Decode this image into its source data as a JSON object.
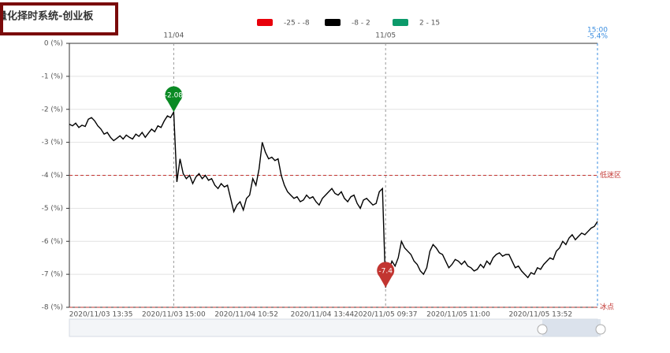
{
  "chart_data": {
    "type": "line",
    "title": "量化择时系统-创业板",
    "categories": [
      null,
      null,
      null,
      null,
      null,
      null,
      null,
      null,
      null,
      null,
      "2020/11/03 13:35",
      null,
      null,
      null,
      null,
      null,
      null,
      null,
      null,
      null,
      null,
      null,
      null,
      null,
      null,
      null,
      null,
      null,
      null,
      null,
      null,
      null,
      null,
      "2020/11/03 15:00",
      null,
      null,
      null,
      null,
      null,
      null,
      null,
      null,
      null,
      null,
      null,
      null,
      null,
      null,
      null,
      null,
      null,
      null,
      null,
      null,
      null,
      null,
      "2020/11/04 10:52",
      null,
      null,
      null,
      null,
      null,
      null,
      null,
      null,
      null,
      null,
      null,
      null,
      null,
      null,
      null,
      null,
      null,
      null,
      null,
      null,
      null,
      null,
      null,
      "2020/11/04 13:44",
      null,
      null,
      null,
      null,
      null,
      null,
      null,
      null,
      null,
      null,
      null,
      null,
      null,
      null,
      null,
      null,
      null,
      null,
      null,
      "2020/11/05 09:37",
      null,
      null,
      null,
      null,
      null,
      null,
      null,
      null,
      null,
      null,
      null,
      null,
      null,
      null,
      null,
      null,
      null,
      null,
      null,
      null,
      null,
      null,
      "2020/11/05 11:00",
      null,
      null,
      null,
      null,
      null,
      null,
      null,
      null,
      null,
      null,
      null,
      null,
      null,
      null,
      null,
      null,
      null,
      null,
      null,
      null,
      null,
      null,
      null,
      null,
      null,
      "2020/11/05 13:52",
      null,
      null,
      null,
      null,
      null,
      null,
      null,
      null,
      null,
      null,
      null,
      null,
      null,
      null,
      null,
      null,
      null,
      null
    ],
    "top_categories": [
      null,
      null,
      null,
      null,
      null,
      null,
      null,
      null,
      null,
      null,
      null,
      null,
      null,
      null,
      null,
      null,
      null,
      null,
      null,
      null,
      null,
      null,
      null,
      null,
      null,
      null,
      null,
      null,
      null,
      null,
      null,
      null,
      null,
      "11/04",
      null,
      null,
      null,
      null,
      null,
      null,
      null,
      null,
      null,
      null,
      null,
      null,
      null,
      null,
      null,
      null,
      null,
      null,
      null,
      null,
      null,
      null,
      null,
      null,
      null,
      null,
      null,
      null,
      null,
      null,
      null,
      null,
      null,
      null,
      null,
      null,
      null,
      null,
      null,
      null,
      null,
      null,
      null,
      null,
      null,
      null,
      null,
      null,
      null,
      null,
      null,
      null,
      null,
      null,
      null,
      null,
      null,
      null,
      null,
      null,
      null,
      null,
      null,
      null,
      null,
      null,
      "11/05",
      null,
      null,
      null,
      null,
      null,
      null,
      null,
      null,
      null,
      null,
      null,
      null,
      null,
      null,
      null,
      null,
      null,
      null,
      null,
      null,
      null,
      null,
      null,
      null,
      null,
      null,
      null,
      null,
      null,
      null,
      null,
      null,
      null,
      null,
      null,
      null,
      null,
      null,
      null,
      null,
      null,
      null,
      null,
      null,
      null,
      null,
      null,
      null,
      null,
      null,
      null,
      null,
      null,
      null,
      null,
      null,
      null,
      null,
      null,
      null,
      null,
      null,
      null,
      null,
      null,
      null,
      "15:00"
    ],
    "values": [
      -2.45,
      -2.5,
      -2.42,
      -2.55,
      -2.48,
      -2.52,
      -2.3,
      -2.25,
      -2.35,
      -2.5,
      -2.6,
      -2.75,
      -2.7,
      -2.85,
      -2.95,
      -2.88,
      -2.8,
      -2.9,
      -2.78,
      -2.85,
      -2.9,
      -2.75,
      -2.82,
      -2.7,
      -2.85,
      -2.72,
      -2.6,
      -2.68,
      -2.5,
      -2.55,
      -2.35,
      -2.2,
      -2.25,
      -2.08,
      -4.2,
      -3.5,
      -3.95,
      -4.1,
      -4.0,
      -4.25,
      -4.05,
      -3.95,
      -4.1,
      -4.0,
      -4.15,
      -4.1,
      -4.3,
      -4.4,
      -4.25,
      -4.35,
      -4.3,
      -4.7,
      -5.1,
      -4.9,
      -4.8,
      -5.05,
      -4.7,
      -4.6,
      -4.1,
      -4.3,
      -3.8,
      -3.0,
      -3.3,
      -3.5,
      -3.45,
      -3.55,
      -3.5,
      -4.0,
      -4.3,
      -4.5,
      -4.6,
      -4.7,
      -4.65,
      -4.8,
      -4.75,
      -4.6,
      -4.7,
      -4.65,
      -4.8,
      -4.9,
      -4.7,
      -4.6,
      -4.5,
      -4.4,
      -4.55,
      -4.6,
      -4.5,
      -4.7,
      -4.8,
      -4.65,
      -4.6,
      -4.85,
      -5.0,
      -4.75,
      -4.7,
      -4.8,
      -4.9,
      -4.85,
      -4.5,
      -4.4,
      -7.4,
      -6.9,
      -6.6,
      -6.75,
      -6.5,
      -6.0,
      -6.2,
      -6.3,
      -6.4,
      -6.6,
      -6.7,
      -6.9,
      -7.0,
      -6.8,
      -6.3,
      -6.1,
      -6.2,
      -6.35,
      -6.4,
      -6.6,
      -6.8,
      -6.7,
      -6.55,
      -6.6,
      -6.7,
      -6.6,
      -6.75,
      -6.8,
      -6.9,
      -6.85,
      -6.7,
      -6.8,
      -6.6,
      -6.7,
      -6.5,
      -6.4,
      -6.35,
      -6.45,
      -6.4,
      -6.4,
      -6.6,
      -6.8,
      -6.75,
      -6.9,
      -7.0,
      -7.1,
      -6.95,
      -7.0,
      -6.8,
      -6.85,
      -6.7,
      -6.6,
      -6.5,
      -6.55,
      -6.3,
      -6.2,
      -6.0,
      -6.1,
      -5.9,
      -5.8,
      -5.95,
      -5.85,
      -5.75,
      -5.8,
      -5.7,
      -5.6,
      -5.55,
      -5.4
    ],
    "pins": [
      {
        "index": 33,
        "label": "-2.08",
        "color": "#0a8a24"
      },
      {
        "index": 100,
        "label": "-7.4",
        "color": "#c23531"
      }
    ],
    "latest_label": "-5.4%",
    "latest_color": "#3a8de0",
    "ylim": [
      -8,
      0
    ],
    "yticks": [
      {
        "value": 0,
        "label": "0 (%)"
      },
      {
        "value": -1,
        "label": "-1 (%)"
      },
      {
        "value": -2,
        "label": "-2 (%)"
      },
      {
        "value": -3,
        "label": "-3 (%)"
      },
      {
        "value": -4,
        "label": "-4 (%)"
      },
      {
        "value": -5,
        "label": "-5 (%)"
      },
      {
        "value": -6,
        "label": "-6 (%)"
      },
      {
        "value": -7,
        "label": "-7 (%)"
      },
      {
        "value": -8,
        "label": "-8 (%)"
      }
    ],
    "grid": true,
    "pieces": [
      {
        "min": -25,
        "max": -8,
        "label": "-25 - -8",
        "color": "#e8000b"
      },
      {
        "min": -8,
        "max": 2,
        "label": "-8 - 2",
        "color": "#000000"
      },
      {
        "min": 2,
        "max": 15,
        "label": "2 - 15",
        "color": "#0b9a6a"
      }
    ],
    "mark_lines": [
      {
        "value": -4,
        "label": "低迷区"
      },
      {
        "value": -8,
        "label": "冰点"
      }
    ],
    "mark_line_color": "#c23531"
  }
}
